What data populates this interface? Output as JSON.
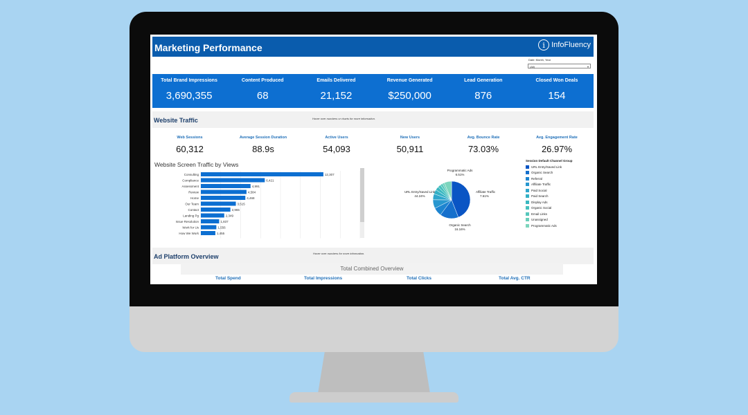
{
  "header": {
    "title": "Marketing Performance",
    "logo_text": "InfoFluency",
    "logo_mark": "i"
  },
  "date_filter": {
    "label": "Date: Month, Year",
    "value": "(All)"
  },
  "kpis": [
    {
      "label": "Total Brand Impressions",
      "value": "3,690,355"
    },
    {
      "label": "Content Produced",
      "value": "68"
    },
    {
      "label": "Emails Delivered",
      "value": "21,152"
    },
    {
      "label": "Revenue Generated",
      "value": "$250,000"
    },
    {
      "label": "Lead Generation",
      "value": "876"
    },
    {
      "label": "Closed Won Deals",
      "value": "154"
    }
  ],
  "website_traffic": {
    "title": "Website Traffic",
    "hint": "Hover over numbers or charts for more information.",
    "metrics": [
      {
        "label": "Web Sessions",
        "value": "60,312"
      },
      {
        "label": "Average Session Duration",
        "value": "88.9s"
      },
      {
        "label": "Active Users",
        "value": "54,093"
      },
      {
        "label": "New Users",
        "value": "50,911"
      },
      {
        "label": "Avg. Bounce Rate",
        "value": "73.03%"
      },
      {
        "label": "Avg. Engagement Rate",
        "value": "26.97%"
      }
    ]
  },
  "chart_data": [
    {
      "type": "bar",
      "title": "Website Screen Traffic by Views",
      "orientation": "horizontal",
      "categories": [
        "Consulting",
        "Compliance",
        "Assessment",
        "Review",
        "Home",
        "Our Team",
        "Contact",
        "Landing Pg",
        "Issue Resolution",
        "Work for Us",
        "How We Work"
      ],
      "values": [
        12307,
        6421,
        4991,
        4584,
        4468,
        3515,
        2965,
        2349,
        1837,
        1556,
        1455
      ],
      "value_labels": [
        "12,307",
        "6,421",
        "4,991",
        "4,584",
        "4,468",
        "3,515",
        "2,965",
        "2,349",
        "1,837",
        "1,556",
        "1,455"
      ],
      "xlim": [
        0,
        16000
      ],
      "grid": true,
      "color": "#0d6fd1"
    },
    {
      "type": "pie",
      "title": "",
      "slices": [
        {
          "name": "URL Entry/Saved Link",
          "value": 44.24,
          "color": "#0a55c4"
        },
        {
          "name": "Organic Search",
          "value": 16.16,
          "color": "#1670cc"
        },
        {
          "name": "Referral",
          "value": 7.4,
          "color": "#1d84d0"
        },
        {
          "name": "Affiliate Traffic",
          "value": 7.61,
          "color": "#2897cf"
        },
        {
          "name": "Paid Social",
          "value": 5.2,
          "color": "#2fa6cc"
        },
        {
          "name": "Paid Search",
          "value": 3.8,
          "color": "#33b0c6"
        },
        {
          "name": "Display Ads",
          "value": 3.1,
          "color": "#3bb8c1"
        },
        {
          "name": "Organic Social",
          "value": 2.6,
          "color": "#46c0bd"
        },
        {
          "name": "Email Links",
          "value": 2.1,
          "color": "#56c7bc"
        },
        {
          "name": "Unassigned",
          "value": 1.68,
          "color": "#69ceba"
        },
        {
          "name": "Programmatic Ads",
          "value": 6.51,
          "color": "#7dd5bd"
        }
      ],
      "annotations": [
        {
          "name": "Programmatic Ads",
          "value": "6.51%"
        },
        {
          "name": "Affiliate Traffic",
          "value": "7.61%"
        },
        {
          "name": "URL Entry/Saved Link",
          "value": "44.24%"
        },
        {
          "name": "Organic Search",
          "value": "16.16%"
        }
      ],
      "legend_title": "Session Default Channel Group",
      "legend_position": "right"
    }
  ],
  "ad_platform": {
    "title": "Ad Platform Overview",
    "hint": "Hover over numbers for more information.",
    "combined_title": "Total Combined Overview",
    "columns": [
      "Total Spend",
      "Total Impressions",
      "Total Clicks",
      "Total Avg. CTR"
    ]
  }
}
